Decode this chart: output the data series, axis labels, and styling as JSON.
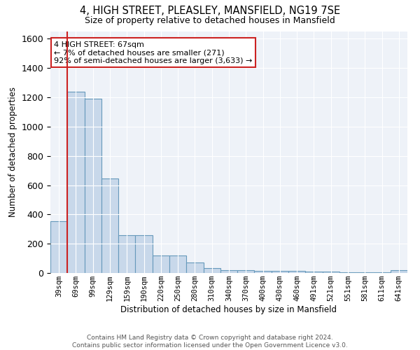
{
  "title": "4, HIGH STREET, PLEASLEY, MANSFIELD, NG19 7SE",
  "subtitle": "Size of property relative to detached houses in Mansfield",
  "xlabel": "Distribution of detached houses by size in Mansfield",
  "ylabel": "Number of detached properties",
  "bar_color": "#c8d8ea",
  "bar_edge_color": "#6699bb",
  "bg_color": "#eef2f8",
  "grid_color": "white",
  "categories": [
    "39sqm",
    "69sqm",
    "99sqm",
    "129sqm",
    "159sqm",
    "190sqm",
    "220sqm",
    "250sqm",
    "280sqm",
    "310sqm",
    "340sqm",
    "370sqm",
    "400sqm",
    "430sqm",
    "460sqm",
    "491sqm",
    "521sqm",
    "551sqm",
    "581sqm",
    "611sqm",
    "641sqm"
  ],
  "values": [
    355,
    1240,
    1190,
    645,
    260,
    260,
    120,
    120,
    72,
    35,
    20,
    18,
    15,
    12,
    12,
    10,
    10,
    5,
    5,
    5,
    18
  ],
  "ylim": [
    0,
    1650
  ],
  "yticks": [
    0,
    200,
    400,
    600,
    800,
    1000,
    1200,
    1400,
    1600
  ],
  "annotation_text": "4 HIGH STREET: 67sqm\n← 7% of detached houses are smaller (271)\n92% of semi-detached houses are larger (3,633) →",
  "vline_x": 0.5,
  "vline_color": "#cc2222",
  "box_color": "#cc2222",
  "footer_text": "Contains HM Land Registry data © Crown copyright and database right 2024.\nContains public sector information licensed under the Open Government Licence v3.0."
}
